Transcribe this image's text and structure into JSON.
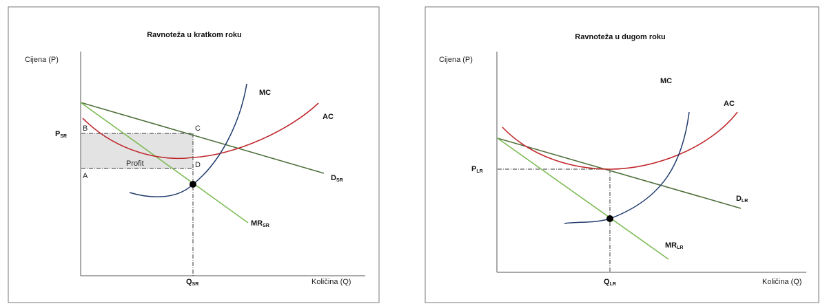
{
  "left": {
    "title": "Ravnoteža u kratkom roku",
    "y_axis_label": "Cijena (P)",
    "x_axis_label": "Količina (Q)",
    "price_label": {
      "main": "P",
      "sub": "SR"
    },
    "quantity_label": {
      "main": "Q",
      "sub": "SR"
    },
    "points": {
      "B": "B",
      "C": "C",
      "A": "A",
      "D": "D"
    },
    "profit_label": "Profit",
    "curves": {
      "mc": {
        "main": "MC",
        "sub": ""
      },
      "ac": {
        "main": "AC",
        "sub": ""
      },
      "d": {
        "main": "D",
        "sub": "SR"
      },
      "mr": {
        "main": "MR",
        "sub": "SR"
      }
    }
  },
  "right": {
    "title": "Ravnoteža u dugom roku",
    "y_axis_label": "Cijena (P)",
    "x_axis_label": "Količina (Q)",
    "price_label": {
      "main": "P",
      "sub": "LR"
    },
    "quantity_label": {
      "main": "Q",
      "sub": "LR"
    },
    "curves": {
      "mc": {
        "main": "MC",
        "sub": ""
      },
      "ac": {
        "main": "AC",
        "sub": ""
      },
      "d": {
        "main": "D",
        "sub": "LR"
      },
      "mr": {
        "main": "MR",
        "sub": "LR"
      }
    }
  },
  "colors": {
    "mc": "#1f3a6b",
    "ac": "#c0282d",
    "demand": "#4f6f3a",
    "mr": "#7dbb55",
    "profit_area": "#e3e3e3"
  }
}
